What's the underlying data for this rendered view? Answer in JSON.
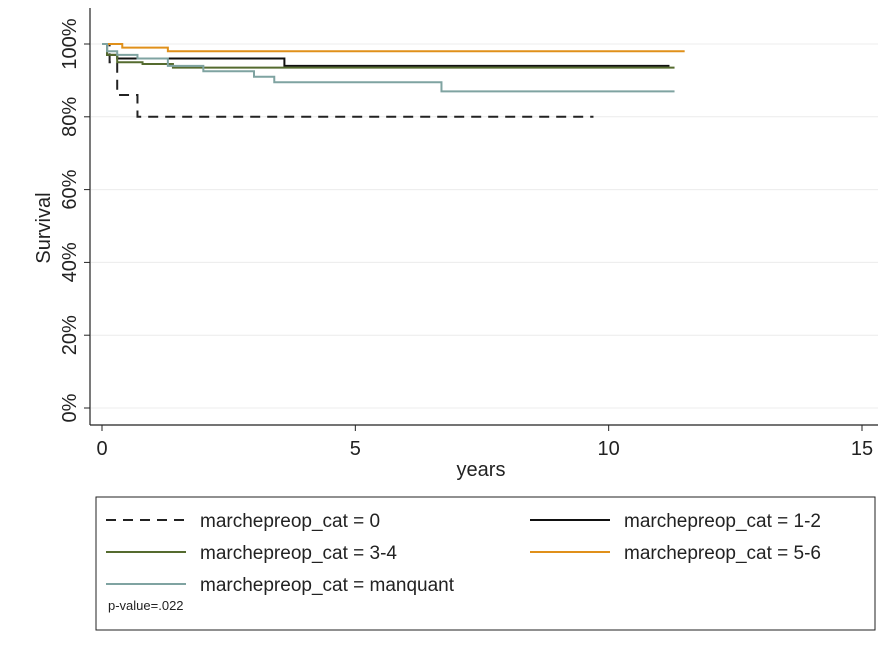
{
  "chart_data": {
    "type": "line",
    "subtype": "kaplan-meier step",
    "xlabel": "years",
    "ylabel": "Survival",
    "xlim": [
      0,
      15
    ],
    "ylim": [
      0,
      100
    ],
    "x_ticks": [
      0,
      5,
      10,
      15
    ],
    "y_ticks": [
      0,
      20,
      40,
      60,
      80,
      100
    ],
    "y_tick_labels": [
      "0%",
      "20%",
      "40%",
      "60%",
      "80%",
      "100%"
    ],
    "grid": "horizontal",
    "legend_placement": "bottom",
    "series": [
      {
        "name": "marchepreop_cat = 0",
        "color": "#222222",
        "dash": "dashed",
        "x": [
          0,
          0.15,
          0.3,
          0.7,
          9.7
        ],
        "y": [
          100,
          95,
          86,
          80,
          80
        ]
      },
      {
        "name": "marchepreop_cat = 1-2",
        "color": "#111111",
        "dash": "solid",
        "x": [
          0,
          0.1,
          0.3,
          3.6,
          11.2
        ],
        "y": [
          100,
          97,
          96,
          94,
          94
        ]
      },
      {
        "name": "marchepreop_cat = 3-4",
        "color": "#556b2f",
        "dash": "solid",
        "x": [
          0,
          0.1,
          0.3,
          0.8,
          1.4,
          11.3
        ],
        "y": [
          100,
          97,
          95,
          94.5,
          93.5,
          93.5
        ]
      },
      {
        "name": "marchepreop_cat = 5-6",
        "color": "#e0901a",
        "dash": "solid",
        "x": [
          0,
          0.4,
          1.3,
          11.5
        ],
        "y": [
          100,
          99,
          98,
          98
        ]
      },
      {
        "name": "marchepreop_cat = manquant",
        "color": "#7fa3a1",
        "dash": "solid",
        "x": [
          0,
          0.1,
          0.3,
          0.7,
          1.3,
          2.0,
          3.0,
          3.4,
          6.7,
          11.3
        ],
        "y": [
          100,
          98,
          97,
          96,
          94,
          92.5,
          91,
          89.5,
          87,
          87
        ]
      }
    ],
    "annotation": "p-value=.022"
  }
}
